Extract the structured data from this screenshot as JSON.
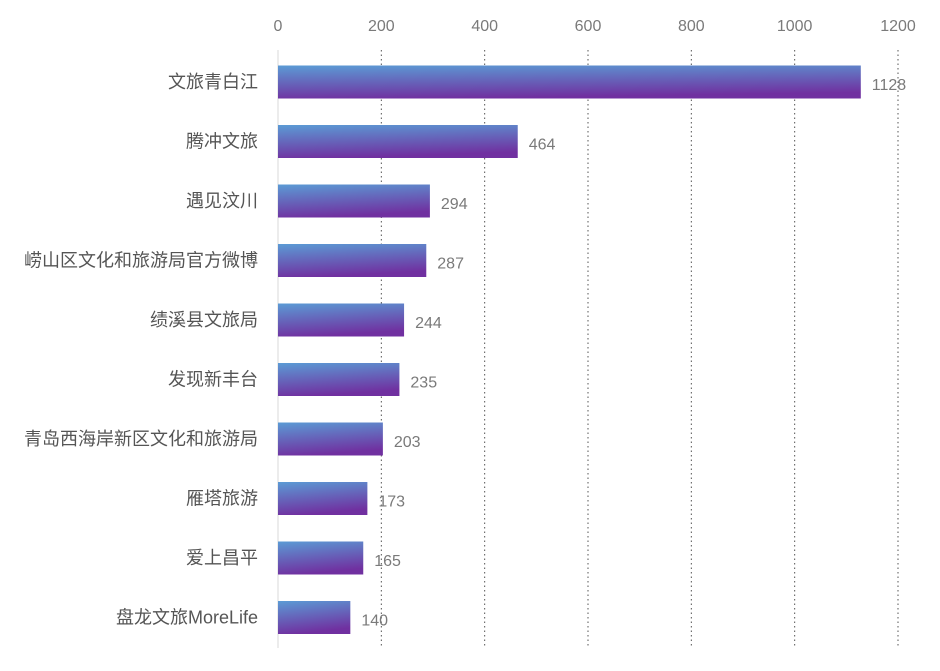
{
  "chart_data": {
    "type": "bar",
    "orientation": "horizontal",
    "categories": [
      "文旅青白江",
      "腾冲文旅",
      "遇见汶川",
      "崂山区文化和旅游局官方微博",
      "绩溪县文旅局",
      "发现新丰台",
      "青岛西海岸新区文化和旅游局",
      "雁塔旅游",
      "爱上昌平",
      "盘龙文旅MoreLife"
    ],
    "values": [
      1128,
      464,
      294,
      287,
      244,
      235,
      203,
      173,
      165,
      140
    ],
    "xlim": [
      0,
      1200
    ],
    "xticks": [
      0,
      200,
      400,
      600,
      800,
      1000,
      1200
    ],
    "xaxis_position": "top",
    "grid": "vertical dotted",
    "title": "",
    "xlabel": "",
    "ylabel": "",
    "bar_gradient": [
      "#5b9bd5",
      "#7030a0"
    ]
  }
}
